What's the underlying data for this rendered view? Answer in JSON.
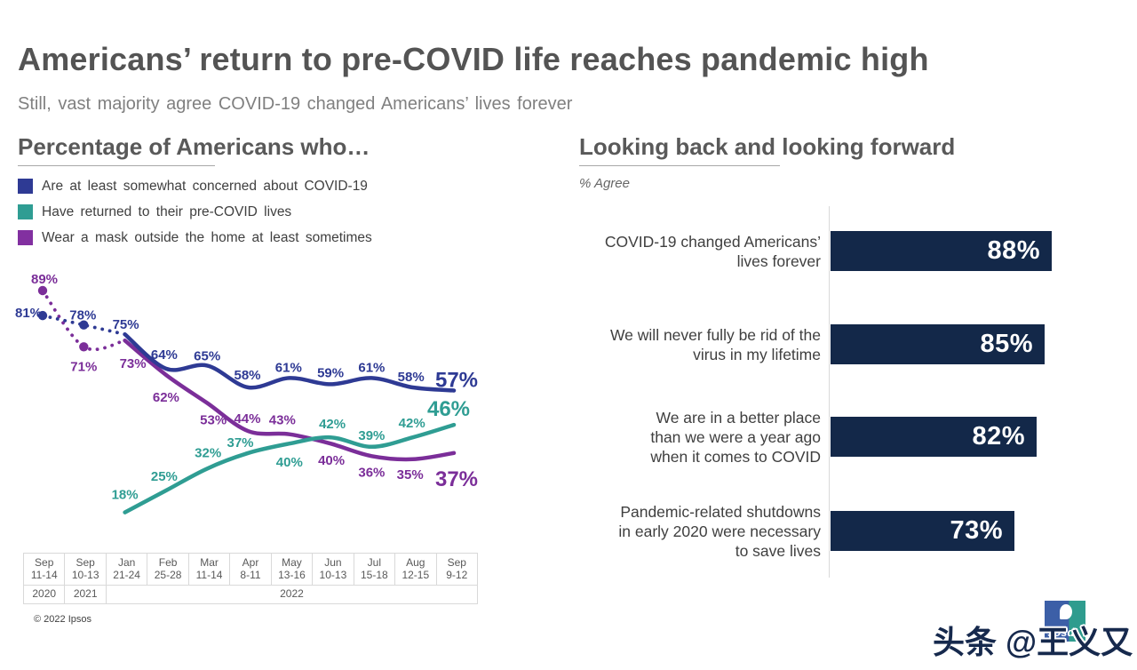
{
  "page": {
    "title": "Americans’ return to pre-COVID life reaches pandemic high",
    "subtitle": "Still, vast majority agree COVID-19 changed Americans’ lives forever",
    "copyright": "© 2022 Ipsos",
    "watermark": "头条 @王义又"
  },
  "left_panel": {
    "heading": "Percentage of Americans who…",
    "legend": [
      {
        "label": "Are at least somewhat concerned about COVID-19",
        "color": "#2E3A94"
      },
      {
        "label": "Have returned to their pre-COVID lives",
        "color": "#2F9D93"
      },
      {
        "label": "Wear a mask outside the home at least sometimes",
        "color": "#8230A0"
      }
    ]
  },
  "right_panel": {
    "heading": "Looking back and looking forward",
    "note": "% Agree",
    "logo_text": "Ipsos"
  },
  "chart_data": [
    {
      "type": "line",
      "title": "Percentage of Americans who…",
      "unit": "%",
      "ylim": [
        0,
        100
      ],
      "grid": false,
      "legend_position": "top-left",
      "note": "Values before Jan 2022 are connected with dotted segments",
      "x_ticks": [
        {
          "month": "Sep",
          "days": "11-14",
          "year": "2020"
        },
        {
          "month": "Sep",
          "days": "10-13",
          "year": "2021"
        },
        {
          "month": "Jan",
          "days": "21-24",
          "year": "2022"
        },
        {
          "month": "Feb",
          "days": "25-28",
          "year": "2022"
        },
        {
          "month": "Mar",
          "days": "11-14",
          "year": "2022"
        },
        {
          "month": "Apr",
          "days": "8-11",
          "year": "2022"
        },
        {
          "month": "May",
          "days": "13-16",
          "year": "2022"
        },
        {
          "month": "Jun",
          "days": "10-13",
          "year": "2022"
        },
        {
          "month": "Jul",
          "days": "15-18",
          "year": "2022"
        },
        {
          "month": "Aug",
          "days": "12-15",
          "year": "2022"
        },
        {
          "month": "Sep",
          "days": "9-12",
          "year": "2022"
        }
      ],
      "year_spans": [
        {
          "label": "2020",
          "cols": 1
        },
        {
          "label": "2021",
          "cols": 1
        },
        {
          "label": "2022",
          "cols": 9
        }
      ],
      "series": [
        {
          "name": "Are at least somewhat concerned about COVID-19",
          "color": "#2E3A94",
          "values": [
            81,
            78,
            75,
            64,
            65,
            58,
            61,
            59,
            61,
            58,
            57
          ]
        },
        {
          "name": "Have returned to their pre-COVID lives",
          "color": "#2F9D93",
          "values": [
            null,
            null,
            18,
            25,
            32,
            37,
            40,
            42,
            39,
            42,
            46
          ]
        },
        {
          "name": "Wear a mask outside the home at least sometimes",
          "color": "#7B2E99",
          "values": [
            89,
            71,
            73,
            62,
            53,
            44,
            43,
            40,
            36,
            35,
            37
          ]
        }
      ],
      "dashed_segment_end_index": 2
    },
    {
      "type": "bar",
      "orientation": "horizontal",
      "title": "Looking back and looking forward",
      "xlabel": "% Agree",
      "xlim": [
        0,
        100
      ],
      "bar_color": "#132849",
      "categories": [
        [
          "COVID-19 changed Americans’",
          "lives forever"
        ],
        [
          "We will never fully be rid of the",
          "virus in my lifetime"
        ],
        [
          "We are in a better place",
          "than we were a year ago",
          "when it comes to COVID"
        ],
        [
          "Pandemic-related shutdowns",
          "in early 2020 were necessary",
          "to save lives"
        ]
      ],
      "values": [
        88,
        85,
        82,
        73
      ]
    }
  ]
}
